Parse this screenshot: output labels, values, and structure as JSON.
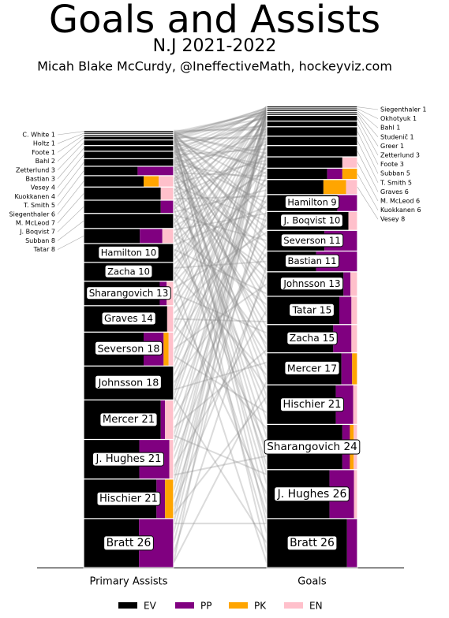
{
  "chart_data": {
    "type": "goal-assist-columns",
    "title": "Goals and Assists",
    "subtitle": "N.J 2021-2022",
    "credit": "Micah Blake McCurdy, @IneffectiveMath, hockeyviz.com",
    "series": [
      {
        "name": "EV",
        "color": "#000000"
      },
      {
        "name": "PP",
        "color": "#800080"
      },
      {
        "name": "PK",
        "color": "#FFA500"
      },
      {
        "name": "EN",
        "color": "#FFC0CB"
      }
    ],
    "columns": [
      {
        "name": "Primary Assists",
        "labels": [
          "Bratt 26",
          "Hischier 21",
          "J. Hughes 21",
          "Mercer 21",
          "Johnsson 18",
          "Severson 18",
          "Graves 14",
          "Sharangovich 13",
          "Zacha 10",
          "Hamilton 10",
          "Tatar 8",
          "Subban 8",
          "J. Boqvist 7",
          "M. McLeod 7",
          "Siegenthaler 6",
          "T. Smith 5",
          "Kuokkanen 4",
          "Vesey 4",
          "Bastian 3",
          "Zetterlund 3",
          "Bahl 2",
          "Foote 1",
          "Holtz 1",
          "C. White 1"
        ],
        "values": [
          [
            16,
            10,
            0,
            0
          ],
          [
            17,
            2,
            2,
            0
          ],
          [
            13,
            7,
            0,
            1
          ],
          [
            18,
            1,
            0,
            2
          ],
          [
            18,
            0,
            0,
            0
          ],
          [
            12,
            4,
            1,
            1
          ],
          [
            13,
            0,
            0,
            1
          ],
          [
            11,
            1,
            0,
            1
          ],
          [
            10,
            0,
            0,
            0
          ],
          [
            10,
            0,
            0,
            0
          ],
          [
            5,
            2,
            0,
            1
          ],
          [
            8,
            0,
            0,
            0
          ],
          [
            6,
            1,
            0,
            0
          ],
          [
            6,
            0,
            0,
            1
          ],
          [
            4,
            0,
            1,
            1
          ],
          [
            3,
            2,
            0,
            0
          ],
          [
            4,
            0,
            0,
            0
          ],
          [
            4,
            0,
            0,
            0
          ],
          [
            3,
            0,
            0,
            0
          ],
          [
            3,
            0,
            0,
            0
          ],
          [
            2,
            0,
            0,
            0
          ],
          [
            1,
            0,
            0,
            0
          ],
          [
            1,
            0,
            0,
            0
          ],
          [
            1,
            0,
            0,
            0
          ]
        ]
      },
      {
        "name": "Goals",
        "labels": [
          "Bratt 26",
          "J. Hughes 26",
          "Sharangovich 24",
          "Hischier 21",
          "Mercer 17",
          "Zacha 15",
          "Tatar 15",
          "Johnsson 13",
          "Bastian 11",
          "Severson 11",
          "J. Boqvist 10",
          "Hamilton 9",
          "Vesey 8",
          "Kuokkanen 6",
          "M. McLeod 6",
          "Graves 6",
          "T. Smith 5",
          "Subban 5",
          "Foote 3",
          "Zetterlund 3",
          "Greer 1",
          "Studenič 1",
          "Bahl 1",
          "Okhotyuk 1",
          "Siegenthaler 1"
        ],
        "values": [
          [
            23,
            3,
            0,
            0
          ],
          [
            18,
            7,
            0,
            1
          ],
          [
            20,
            2,
            1,
            1
          ],
          [
            16,
            4,
            0,
            1
          ],
          [
            14,
            2,
            1,
            0
          ],
          [
            11,
            3,
            0,
            1
          ],
          [
            12,
            2,
            0,
            1
          ],
          [
            11,
            1,
            0,
            1
          ],
          [
            6,
            5,
            0,
            0
          ],
          [
            7,
            4,
            0,
            0
          ],
          [
            9,
            0,
            0,
            1
          ],
          [
            7,
            2,
            0,
            0
          ],
          [
            5,
            0,
            2,
            1
          ],
          [
            4,
            1,
            1,
            0
          ],
          [
            5,
            0,
            0,
            1
          ],
          [
            6,
            0,
            0,
            0
          ],
          [
            5,
            0,
            0,
            0
          ],
          [
            5,
            0,
            0,
            0
          ],
          [
            3,
            0,
            0,
            0
          ],
          [
            3,
            0,
            0,
            0
          ],
          [
            1,
            0,
            0,
            0
          ],
          [
            1,
            0,
            0,
            0
          ],
          [
            1,
            0,
            0,
            0
          ],
          [
            1,
            0,
            0,
            0
          ],
          [
            1,
            0,
            0,
            0
          ]
        ]
      }
    ]
  }
}
